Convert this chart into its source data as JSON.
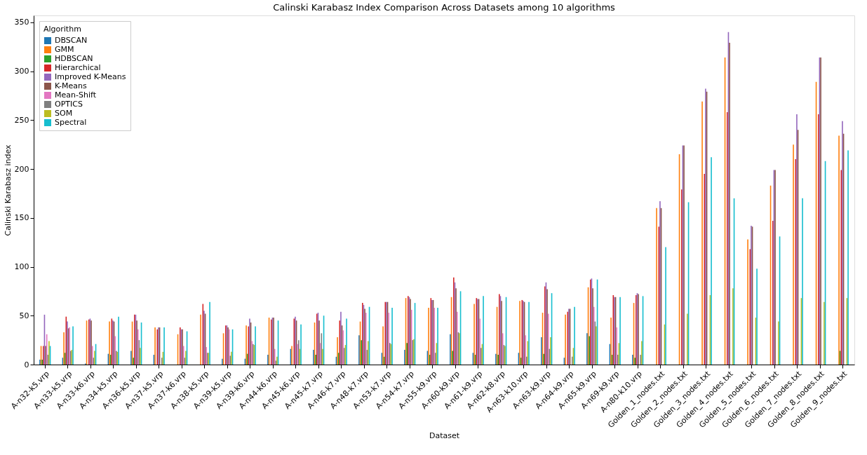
{
  "chart_data": {
    "type": "bar",
    "title": "Calinski Karabasz Index Comparison Across Datasets among 10 algorithms",
    "xlabel": "Dataset",
    "ylabel": "Calinski Karabasz index",
    "legend_title": "Algorithm",
    "legend": "top left",
    "grid": false,
    "ylim": [
      0,
      357
    ],
    "yticks": [
      0,
      50,
      100,
      150,
      200,
      250,
      300,
      350
    ],
    "categories": [
      "A-n32-k5.vrp",
      "A-n33-k5.vrp",
      "A-n33-k6.vrp",
      "A-n34-k5.vrp",
      "A-n36-k5.vrp",
      "A-n37-k5.vrp",
      "A-n37-k6.vrp",
      "A-n38-k5.vrp",
      "A-n39-k5.vrp",
      "A-n39-k6.vrp",
      "A-n44-k6.vrp",
      "A-n45-k6.vrp",
      "A-n45-k7.vrp",
      "A-n46-k7.vrp",
      "A-n48-k7.vrp",
      "A-n53-k7.vrp",
      "A-n54-k7.vrp",
      "A-n55-k9.vrp",
      "A-n60-k9.vrp",
      "A-n61-k9.vrp",
      "A-n62-k8.vrp",
      "A-n63-k10.vrp",
      "A-n63-k9.vrp",
      "A-n64-k9.vrp",
      "A-n65-k9.vrp",
      "A-n69-k9.vrp",
      "A-n80-k10.vrp",
      "Golden_1_nodes.txt",
      "Golden_2_nodes.txt",
      "Golden_3_nodes.txt",
      "Golden_4_nodes.txt",
      "Golden_5_nodes.txt",
      "Golden_6_nodes.txt",
      "Golden_7_nodes.txt",
      "Golden_8_nodes.txt",
      "Golden_9_nodes.txt"
    ],
    "series": [
      {
        "name": "DBSCAN",
        "color": "#1f77b4",
        "values": [
          5,
          7,
          1,
          11,
          14,
          10,
          0,
          null,
          6,
          6,
          10,
          16,
          15,
          8,
          30,
          12,
          15,
          14,
          31,
          12,
          11,
          12,
          28,
          7,
          32,
          21,
          10,
          0,
          0,
          0,
          0,
          0,
          0,
          0,
          0,
          0
        ]
      },
      {
        "name": "GMM",
        "color": "#ff7f0e",
        "values": [
          19,
          33,
          45,
          44,
          44,
          38,
          31,
          51,
          32,
          40,
          48,
          19,
          43,
          28,
          44,
          39,
          68,
          58,
          69,
          62,
          59,
          65,
          53,
          51,
          79,
          48,
          63,
          160,
          215,
          269,
          314,
          128,
          183,
          225,
          289,
          234
        ]
      },
      {
        "name": "HDBSCAN",
        "color": "#2ca02c",
        "values": [
          5,
          12,
          0,
          10,
          7,
          0,
          0,
          0,
          0,
          11,
          0,
          0,
          10,
          12,
          25,
          8,
          22,
          10,
          14,
          10,
          10,
          7,
          11,
          0,
          29,
          10,
          7,
          0,
          0,
          0,
          0,
          0,
          0,
          0,
          0,
          14
        ]
      },
      {
        "name": "Hierarchical",
        "color": "#d62728",
        "values": [
          19,
          49,
          46,
          47,
          51,
          36,
          38,
          62,
          40,
          39,
          46,
          47,
          52,
          45,
          63,
          64,
          70,
          68,
          89,
          68,
          72,
          66,
          80,
          54,
          87,
          71,
          71,
          141,
          179,
          195,
          258,
          118,
          147,
          210,
          256,
          199
        ]
      },
      {
        "name": "Improved K-Means",
        "color": "#9467bd",
        "values": [
          51,
          44,
          47,
          45,
          51,
          38,
          36,
          55,
          40,
          47,
          48,
          49,
          53,
          54,
          61,
          64,
          69,
          66,
          84,
          67,
          70,
          65,
          84,
          57,
          88,
          69,
          73,
          167,
          224,
          282,
          340,
          142,
          199,
          256,
          314,
          249
        ]
      },
      {
        "name": "K-Means",
        "color": "#8c564b",
        "values": [
          19,
          37,
          45,
          44,
          45,
          38,
          36,
          52,
          38,
          43,
          48,
          45,
          45,
          40,
          57,
          64,
          67,
          66,
          78,
          67,
          65,
          64,
          77,
          57,
          78,
          69,
          72,
          160,
          224,
          279,
          329,
          141,
          199,
          240,
          314,
          236
        ]
      },
      {
        "name": "Mean-Shift",
        "color": "#e377c2",
        "values": [
          31,
          38,
          19,
          29,
          36,
          0,
          19,
          18,
          36,
          24,
          16,
          21,
          22,
          35,
          53,
          53,
          56,
          58,
          54,
          47,
          32,
          30,
          52,
          0,
          59,
          38,
          0,
          0,
          0,
          0,
          0,
          0,
          0,
          0,
          0,
          0
        ]
      },
      {
        "name": "OPTICS",
        "color": "#7f7f7f",
        "values": [
          10,
          14,
          7,
          14,
          25,
          7,
          7,
          12,
          9,
          21,
          4,
          25,
          32,
          17,
          15,
          22,
          25,
          12,
          33,
          17,
          20,
          8,
          16,
          8,
          44,
          10,
          10,
          0,
          0,
          0,
          0,
          0,
          0,
          0,
          0,
          0
        ]
      },
      {
        "name": "SOM",
        "color": "#bcbd22",
        "values": [
          24,
          15,
          14,
          13,
          17,
          13,
          14,
          12,
          13,
          20,
          8,
          16,
          16,
          20,
          24,
          21,
          26,
          22,
          32,
          21,
          19,
          24,
          28,
          17,
          39,
          22,
          24,
          41,
          52,
          71,
          78,
          48,
          44,
          68,
          64,
          68
        ]
      },
      {
        "name": "Spectral",
        "color": "#17becf",
        "values": [
          19,
          39,
          21,
          49,
          43,
          38,
          34,
          64,
          36,
          39,
          45,
          41,
          50,
          47,
          59,
          58,
          63,
          58,
          75,
          70,
          69,
          64,
          73,
          59,
          87,
          69,
          70,
          120,
          166,
          212,
          170,
          98,
          131,
          170,
          208,
          219
        ]
      }
    ]
  }
}
